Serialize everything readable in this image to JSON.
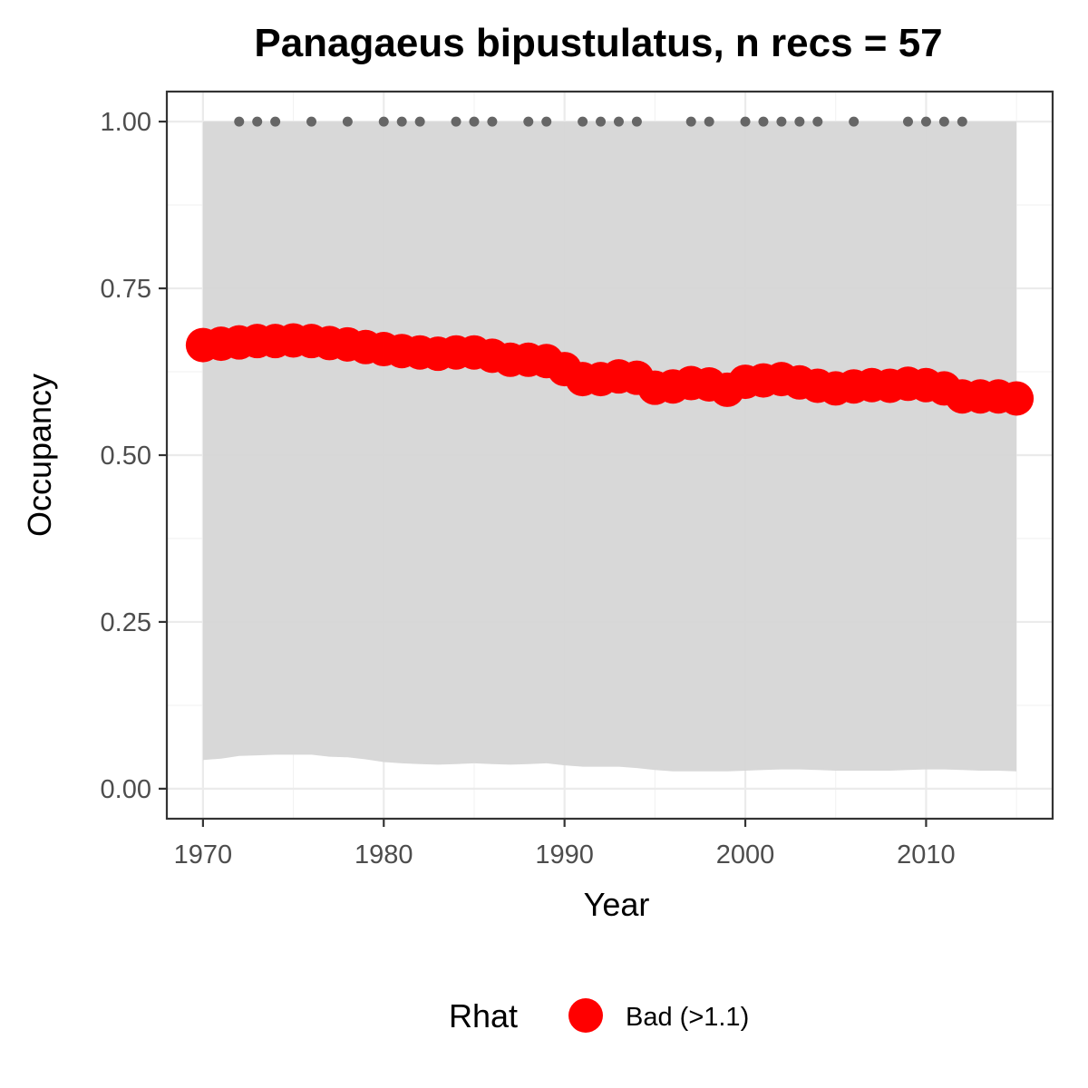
{
  "chart_data": {
    "type": "line",
    "title": "Panagaeus bipustulatus, n recs = 57",
    "xlabel": "Year",
    "ylabel": "Occupancy",
    "xlim": [
      1968,
      2017
    ],
    "ylim": [
      -0.045,
      1.045
    ],
    "x_ticks": [
      1970,
      1980,
      1990,
      2000,
      2010
    ],
    "x_tick_labels": [
      "1970",
      "1980",
      "1990",
      "2000",
      "2010"
    ],
    "y_ticks": [
      0,
      0.25,
      0.5,
      0.75,
      1
    ],
    "y_tick_labels": [
      "0.00",
      "0.25",
      "0.50",
      "0.75",
      "1.00"
    ],
    "grid": true,
    "legend": {
      "position": "bottom",
      "title": "Rhat",
      "entries": [
        {
          "label": "Bad (>1.1)",
          "color": "#ff0000"
        }
      ]
    },
    "series": [
      {
        "name": "Bad (>1.1)",
        "color": "#ff0000",
        "x": [
          1970,
          1971,
          1972,
          1973,
          1974,
          1975,
          1976,
          1977,
          1978,
          1979,
          1980,
          1981,
          1982,
          1983,
          1984,
          1985,
          1986,
          1987,
          1988,
          1989,
          1990,
          1991,
          1992,
          1993,
          1994,
          1995,
          1996,
          1997,
          1998,
          1999,
          2000,
          2001,
          2002,
          2003,
          2004,
          2005,
          2006,
          2007,
          2008,
          2009,
          2010,
          2011,
          2012,
          2013,
          2014,
          2015
        ],
        "y": [
          0.665,
          0.667,
          0.669,
          0.671,
          0.671,
          0.672,
          0.671,
          0.668,
          0.666,
          0.662,
          0.659,
          0.656,
          0.654,
          0.652,
          0.654,
          0.654,
          0.649,
          0.643,
          0.643,
          0.641,
          0.629,
          0.614,
          0.614,
          0.618,
          0.616,
          0.601,
          0.603,
          0.608,
          0.606,
          0.598,
          0.61,
          0.612,
          0.614,
          0.609,
          0.604,
          0.6,
          0.603,
          0.605,
          0.604,
          0.607,
          0.605,
          0.6,
          0.588,
          0.588,
          0.588,
          0.585
        ]
      }
    ],
    "credible_interval": {
      "x": [
        1970,
        1971,
        1972,
        1973,
        1974,
        1975,
        1976,
        1977,
        1978,
        1979,
        1980,
        1981,
        1982,
        1983,
        1984,
        1985,
        1986,
        1987,
        1988,
        1989,
        1990,
        1991,
        1992,
        1993,
        1994,
        1995,
        1996,
        1997,
        1998,
        1999,
        2000,
        2001,
        2002,
        2003,
        2004,
        2005,
        2006,
        2007,
        2008,
        2009,
        2010,
        2011,
        2012,
        2013,
        2014,
        2015
      ],
      "lower": [
        0.043,
        0.045,
        0.049,
        0.05,
        0.051,
        0.051,
        0.051,
        0.048,
        0.047,
        0.044,
        0.04,
        0.038,
        0.037,
        0.036,
        0.037,
        0.038,
        0.037,
        0.036,
        0.037,
        0.038,
        0.035,
        0.033,
        0.033,
        0.033,
        0.031,
        0.028,
        0.026,
        0.026,
        0.026,
        0.026,
        0.027,
        0.028,
        0.029,
        0.029,
        0.028,
        0.027,
        0.027,
        0.027,
        0.027,
        0.028,
        0.029,
        0.029,
        0.028,
        0.027,
        0.027,
        0.026
      ],
      "upper": [
        1,
        1,
        1,
        1,
        1,
        1,
        1,
        1,
        1,
        1,
        1,
        1,
        1,
        1,
        1,
        1,
        1,
        1,
        1,
        1,
        1,
        1,
        1,
        1,
        1,
        1,
        1,
        1,
        1,
        1,
        1,
        1,
        1,
        1,
        1,
        1,
        1,
        1,
        1,
        1,
        1,
        1,
        1,
        1,
        1,
        1
      ],
      "color": "#d6d6d6"
    },
    "record_years": {
      "y": 1,
      "x": [
        1972,
        1973,
        1974,
        1976,
        1978,
        1980,
        1981,
        1982,
        1984,
        1985,
        1986,
        1988,
        1989,
        1991,
        1992,
        1993,
        1994,
        1997,
        1998,
        2000,
        2001,
        2002,
        2003,
        2004,
        2006,
        2009,
        2010,
        2011,
        2012
      ],
      "color": "#666666"
    }
  }
}
